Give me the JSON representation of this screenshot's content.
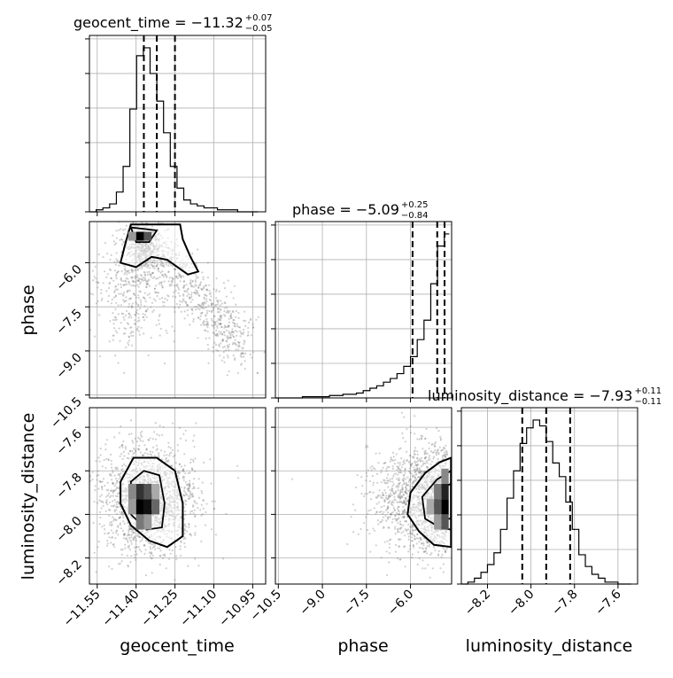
{
  "chart_data": {
    "type": "corner",
    "parameters": [
      "geocent_time",
      "phase",
      "luminosity_distance"
    ],
    "axis_labels": {
      "geocent_time": "geocent_time",
      "phase": "phase",
      "luminosity_distance": "luminosity_distance"
    },
    "grid": true,
    "titles": [
      {
        "param": "geocent_time",
        "label": "geocent_time = −11.32",
        "plus": "+0.07",
        "minus": "−0.05"
      },
      {
        "param": "phase",
        "label": "phase = −5.09",
        "plus": "+0.25",
        "minus": "−0.84"
      },
      {
        "param": "luminosity_distance",
        "label": "luminosity_distance = −7.93",
        "plus": "+0.11",
        "minus": "−0.11"
      }
    ],
    "ranges": {
      "geocent_time": [
        -11.58,
        -10.9
      ],
      "phase": [
        -10.6,
        -4.6
      ],
      "luminosity_distance": [
        -8.32,
        -7.51
      ]
    },
    "ticks": {
      "geocent_time": [
        {
          "v": -11.55,
          "t": "−11.55"
        },
        {
          "v": -11.4,
          "t": "−11.40"
        },
        {
          "v": -11.25,
          "t": "−11.25"
        },
        {
          "v": -11.1,
          "t": "−11.10"
        },
        {
          "v": -10.95,
          "t": "−10.95"
        }
      ],
      "phase": [
        {
          "v": -10.5,
          "t": "−10.5"
        },
        {
          "v": -9.0,
          "t": "−9.0"
        },
        {
          "v": -7.5,
          "t": "−7.5"
        },
        {
          "v": -6.0,
          "t": "−6.0"
        }
      ],
      "luminosity_distance": [
        {
          "v": -8.2,
          "t": "−8.2"
        },
        {
          "v": -8.0,
          "t": "−8.0"
        },
        {
          "v": -7.8,
          "t": "−7.8"
        },
        {
          "v": -7.6,
          "t": "−7.6"
        }
      ]
    },
    "quantiles": {
      "geocent_time": [
        -11.37,
        -11.32,
        -11.25
      ],
      "phase": [
        -5.93,
        -5.09,
        -4.84
      ],
      "luminosity_distance": [
        -8.04,
        -7.93,
        -7.82
      ]
    },
    "histograms": {
      "geocent_time": {
        "edges": [
          -11.58,
          -11.554,
          -11.528,
          -11.502,
          -11.476,
          -11.45,
          -11.424,
          -11.398,
          -11.372,
          -11.346,
          -11.32,
          -11.294,
          -11.268,
          -11.242,
          -11.216,
          -11.19,
          -11.164,
          -11.138,
          -11.112,
          -11.086,
          -11.06,
          -11.034,
          -11.008,
          -10.982,
          -10.956,
          -10.93
        ],
        "counts": [
          0,
          1,
          2,
          4,
          10,
          23,
          52,
          79,
          83,
          70,
          56,
          40,
          23,
          12,
          6,
          4,
          3,
          2,
          2,
          1,
          1,
          1,
          0,
          0,
          0
        ]
      },
      "phase": {
        "edges": [
          -10.6,
          -10.37,
          -10.14,
          -9.91,
          -9.68,
          -9.45,
          -9.22,
          -8.99,
          -8.76,
          -8.53,
          -8.3,
          -8.07,
          -7.84,
          -7.61,
          -7.38,
          -7.15,
          -6.92,
          -6.69,
          -6.46,
          -6.23,
          -6.0,
          -5.77,
          -5.54,
          -5.31,
          -5.08,
          -4.85,
          -4.68
        ],
        "counts": [
          0,
          0,
          0,
          0,
          1,
          1,
          1,
          1,
          2,
          2,
          3,
          3,
          4,
          6,
          8,
          10,
          13,
          16,
          20,
          26,
          34,
          48,
          64,
          94,
          125,
          135
        ]
      },
      "luminosity_distance": {
        "edges": [
          -8.32,
          -8.29,
          -8.26,
          -8.23,
          -8.2,
          -8.17,
          -8.14,
          -8.11,
          -8.08,
          -8.05,
          -8.02,
          -7.99,
          -7.96,
          -7.93,
          -7.9,
          -7.87,
          -7.84,
          -7.81,
          -7.78,
          -7.75,
          -7.72,
          -7.69,
          -7.66,
          -7.63,
          -7.6,
          -7.57,
          -7.54
        ],
        "counts": [
          0,
          1,
          3,
          6,
          10,
          16,
          28,
          44,
          58,
          72,
          80,
          84,
          81,
          73,
          62,
          55,
          42,
          28,
          15,
          9,
          5,
          3,
          1,
          1,
          0,
          0
        ]
      }
    },
    "density_peaks": {
      "phase_vs_geocent_time": {
        "x": -11.37,
        "y": -5.1
      },
      "luminosity_distance_vs_geocent_time": {
        "x": -11.37,
        "y": -7.95
      },
      "luminosity_distance_vs_phase": {
        "x": -4.8,
        "y": -7.95
      }
    }
  }
}
